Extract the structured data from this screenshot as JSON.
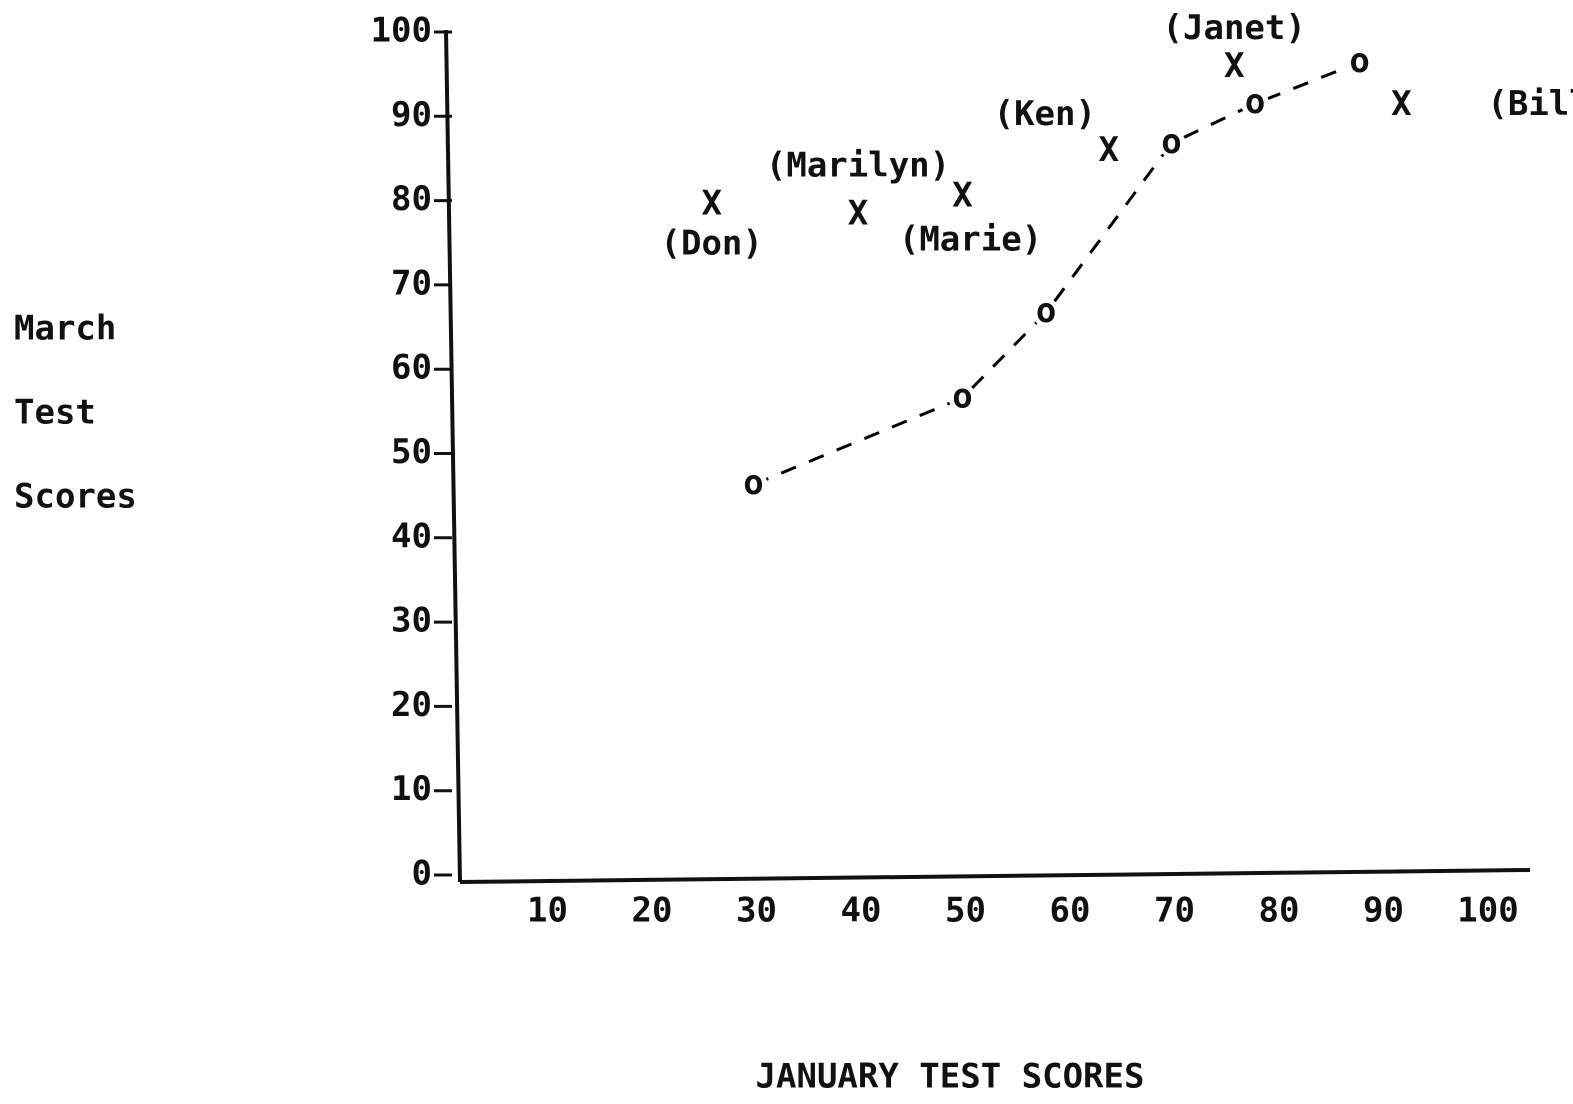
{
  "chart_data": {
    "type": "scatter",
    "x_label": "JANUARY TEST SCORES",
    "y_label": [
      "March",
      "Test",
      "Scores"
    ],
    "xlim": [
      0,
      105
    ],
    "ylim": [
      0,
      100
    ],
    "xticks": [
      10,
      20,
      30,
      40,
      50,
      60,
      70,
      80,
      90,
      100
    ],
    "yticks": [
      0,
      10,
      20,
      30,
      40,
      50,
      60,
      70,
      80,
      90,
      100
    ],
    "series": [
      {
        "marker": "X",
        "color": "#000000",
        "x": [
          26,
          40,
          50,
          64,
          76,
          92
        ],
        "values": [
          79.5,
          78.3,
          80.4,
          85.8,
          95.8,
          91.3
        ],
        "point_labels": [
          "(Don)",
          "(Marilyn)",
          "(Marie)",
          "(Ken)",
          "(Janet)",
          "(Bill)"
        ]
      },
      {
        "marker": "o",
        "color": "#000000",
        "line": "dashed",
        "x": [
          30,
          50,
          58,
          70,
          78,
          88
        ],
        "values": [
          46.3,
          56.6,
          66.7,
          86.8,
          91.5,
          96.4
        ]
      }
    ]
  }
}
